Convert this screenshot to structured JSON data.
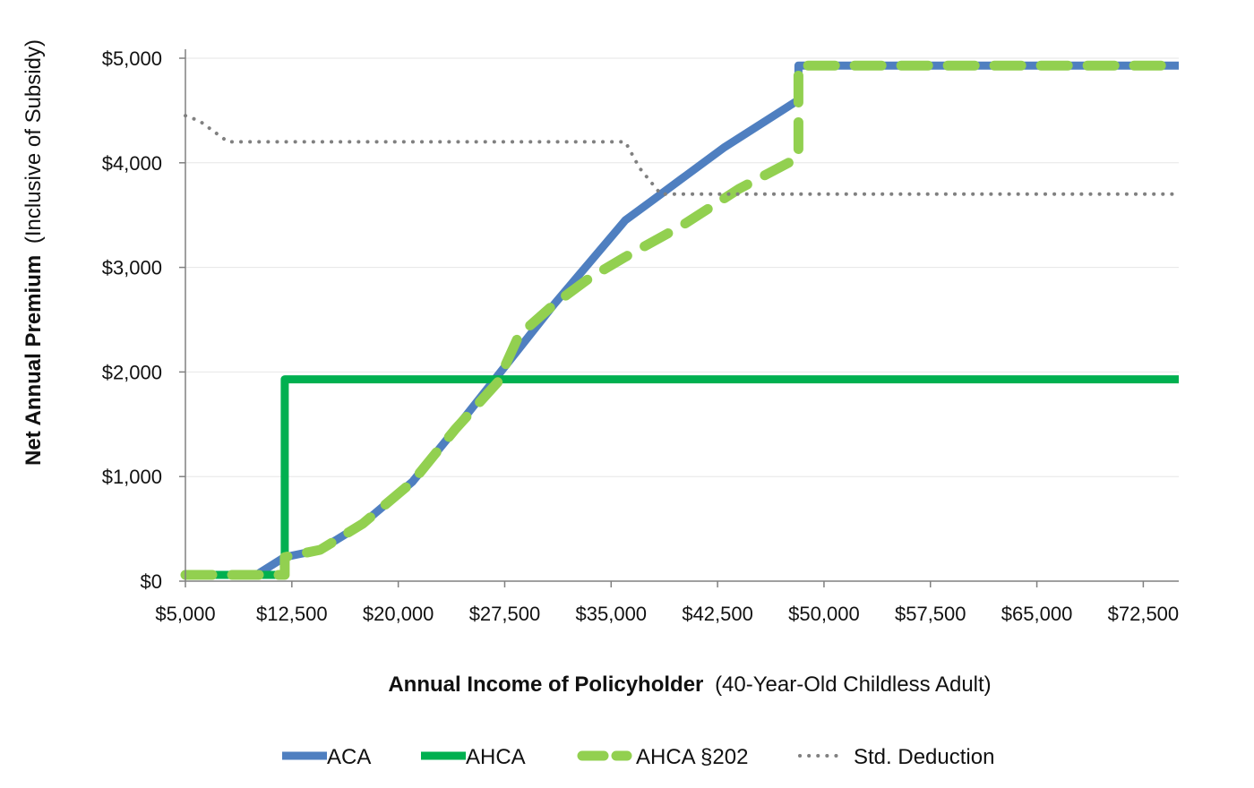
{
  "chart_data": {
    "type": "line",
    "ylabel_bold": "Net Annual Premium",
    "ylabel_light": "(Inclusive of Subsidy)",
    "xlabel_bold": "Annual Income of Policyholder",
    "xlabel_light": "(40-Year-Old Childless Adult)",
    "xlim": [
      5000,
      75000
    ],
    "ylim": [
      0,
      5000
    ],
    "x_tick_values": [
      5000,
      12500,
      20000,
      27500,
      35000,
      42500,
      50000,
      57500,
      65000,
      72500
    ],
    "x_tick_labels": [
      "$5,000",
      "$12,500",
      "$20,000",
      "$27,500",
      "$35,000",
      "$42,500",
      "$50,000",
      "$57,500",
      "$65,000",
      "$72,500"
    ],
    "y_tick_values": [
      0,
      1000,
      2000,
      3000,
      4000,
      5000
    ],
    "y_tick_labels": [
      "$0",
      "$1,000",
      "$2,000",
      "$3,000",
      "$4,000",
      "$5,000"
    ],
    "grid": "horizontal",
    "legend_position": "bottom",
    "series": [
      {
        "name": "ACA",
        "color": "#4f7fc0",
        "style": "solid",
        "points": [
          [
            5000,
            60
          ],
          [
            10000,
            60
          ],
          [
            12000,
            230
          ],
          [
            14500,
            300
          ],
          [
            17500,
            550
          ],
          [
            21000,
            950
          ],
          [
            24000,
            1450
          ],
          [
            27500,
            2050
          ],
          [
            31000,
            2650
          ],
          [
            33500,
            3050
          ],
          [
            36000,
            3450
          ],
          [
            38000,
            3650
          ],
          [
            40000,
            3850
          ],
          [
            43000,
            4150
          ],
          [
            48200,
            4600
          ],
          [
            48200,
            4930
          ],
          [
            75000,
            4930
          ]
        ]
      },
      {
        "name": "AHCA",
        "color": "#00b050",
        "style": "solid",
        "points": [
          [
            5000,
            60
          ],
          [
            12000,
            60
          ],
          [
            12000,
            1930
          ],
          [
            75000,
            1930
          ]
        ]
      },
      {
        "name": "AHCA §202",
        "color": "#92d050",
        "style": "dashed",
        "points": [
          [
            5000,
            60
          ],
          [
            12000,
            60
          ],
          [
            12000,
            230
          ],
          [
            14500,
            300
          ],
          [
            17500,
            550
          ],
          [
            21000,
            950
          ],
          [
            24000,
            1450
          ],
          [
            27000,
            1900
          ],
          [
            28500,
            2350
          ],
          [
            31000,
            2650
          ],
          [
            33500,
            2900
          ],
          [
            36000,
            3100
          ],
          [
            40000,
            3400
          ],
          [
            44000,
            3750
          ],
          [
            48200,
            4050
          ],
          [
            48200,
            4930
          ],
          [
            75000,
            4930
          ]
        ]
      },
      {
        "name": "Std. Deduction",
        "color": "#808080",
        "style": "dotted",
        "points": [
          [
            5000,
            4450
          ],
          [
            6000,
            4400
          ],
          [
            8000,
            4200
          ],
          [
            36000,
            4200
          ],
          [
            37000,
            3950
          ],
          [
            38500,
            3700
          ],
          [
            75000,
            3700
          ]
        ]
      }
    ]
  }
}
